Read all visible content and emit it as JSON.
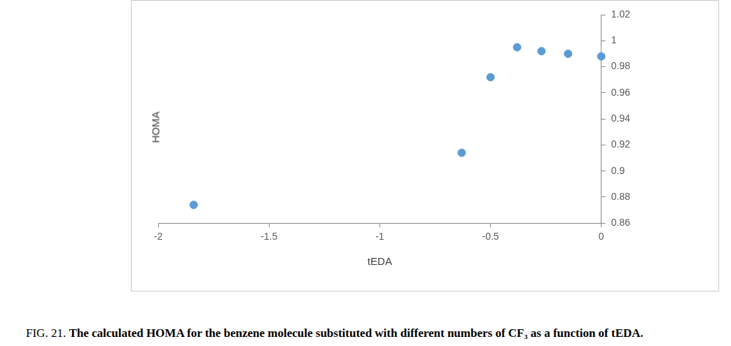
{
  "chart_data": {
    "type": "scatter",
    "x_label": "tEDA",
    "y_label": "HOMA",
    "caption": {
      "label": "FIG. 21.",
      "text": "The calculated HOMA for the benzene molecule substituted with different numbers of CF₃ as a function of tEDA."
    },
    "x": [
      -1.84,
      -0.63,
      -0.5,
      -0.38,
      -0.27,
      -0.15,
      0
    ],
    "values": [
      0.874,
      0.914,
      0.972,
      0.995,
      0.992,
      0.99,
      0.988
    ],
    "color": "#5b9bd5",
    "marker": "circle",
    "xlim": [
      -2,
      0
    ],
    "xticks": [
      -2,
      -1.5,
      -1,
      -0.5,
      0
    ],
    "ylim": [
      0.86,
      1.02
    ],
    "yticks": [
      0.86,
      0.88,
      0.9,
      0.92,
      0.94,
      0.96,
      0.98,
      1,
      1.02
    ],
    "grid": false
  }
}
